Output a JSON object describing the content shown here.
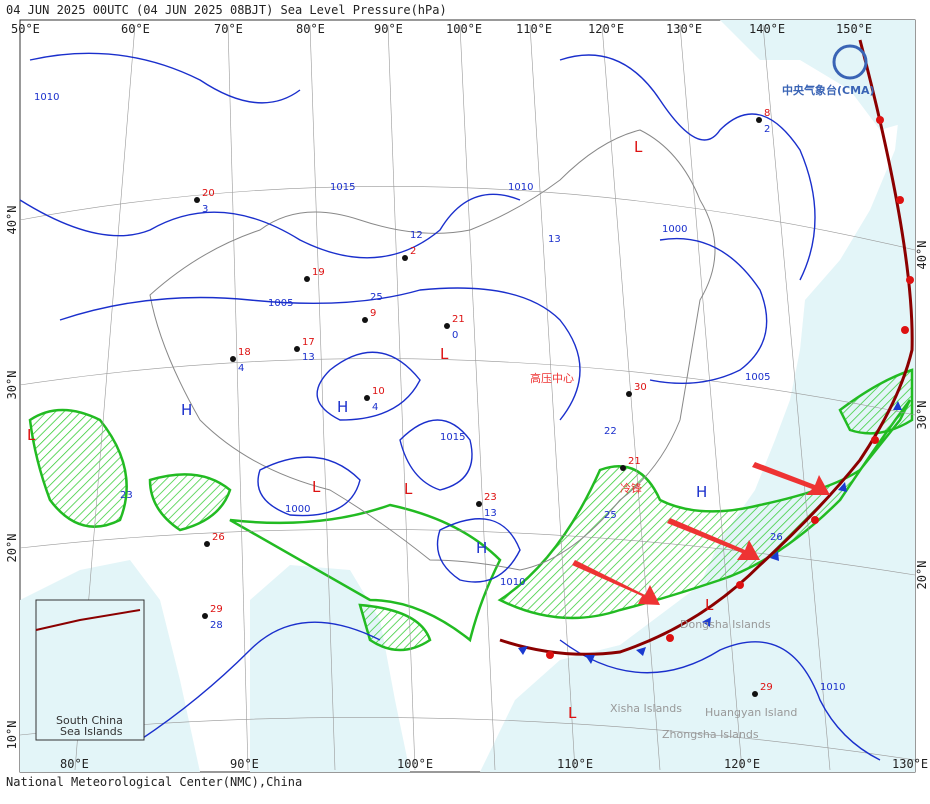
{
  "header": {
    "title": "04 JUN 2025 00UTC  (04 JUN 2025 08BJT) Sea Level Pressure(hPa)"
  },
  "footer": "National Meteorological Center(NMC),China",
  "logo": "中央气象台(CMA)",
  "lon_top": [
    "50°E",
    "60°E",
    "70°E",
    "80°E",
    "90°E",
    "100°E",
    "110°E",
    "120°E",
    "130°E",
    "140°E",
    "150°E"
  ],
  "lon_bottom": [
    "80°E",
    "90°E",
    "100°E",
    "110°E",
    "120°E",
    "130°E"
  ],
  "lat_left": [
    "40°N",
    "30°N",
    "20°N",
    "10°N"
  ],
  "lat_right": [
    "40°N",
    "30°N",
    "20°N"
  ],
  "annotations": [
    "高压中心",
    "冷锋"
  ],
  "centers": [
    "H",
    "H",
    "H",
    "H",
    "L",
    "L",
    "L",
    "L",
    "L",
    "L",
    "L"
  ],
  "isobar_labels": [
    "1015",
    "1010",
    "1005",
    "1000",
    "1010",
    "1005",
    "1000",
    "1010",
    "1015",
    "1010"
  ],
  "stations": [
    "21",
    "0",
    "17",
    "13",
    "19",
    "25",
    "9",
    "12",
    "2",
    "13",
    "20",
    "3",
    "18",
    "4",
    "10",
    "4",
    "23",
    "13",
    "26",
    "23",
    "29",
    "28",
    "30",
    "22",
    "21",
    "25",
    "29",
    "26",
    "8",
    "2"
  ],
  "islands": [
    "Xisha Islands",
    "Zhongsha Islands",
    "Huangyan Island",
    "Dongsha Islands"
  ],
  "inset": [
    "South China",
    "Sea Islands"
  ]
}
